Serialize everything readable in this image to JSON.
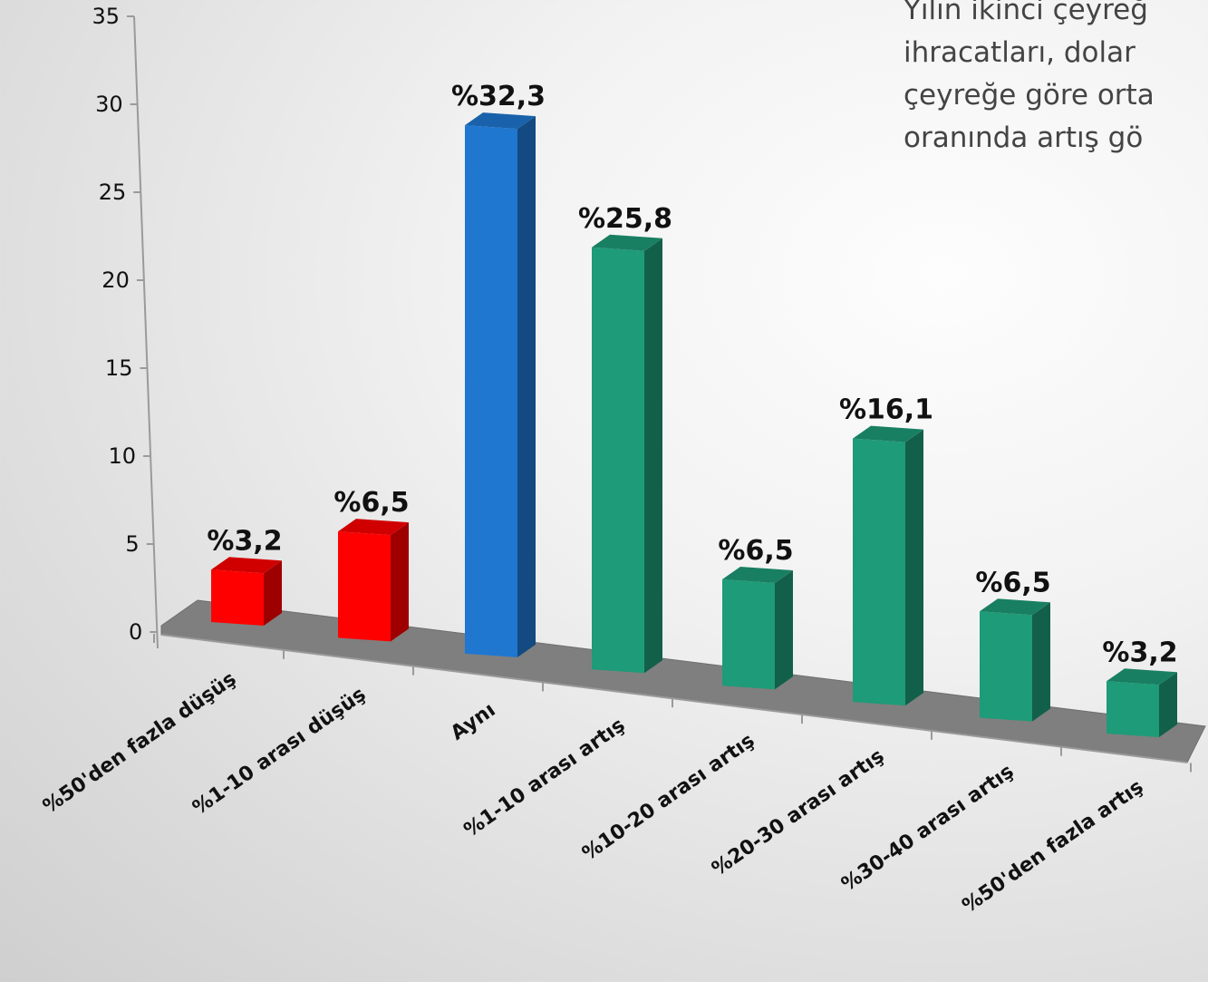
{
  "side_note": {
    "lines": [
      "Yılın ikinci çeyreğ",
      "ihracatları, dolar",
      "çeyreğe göre orta",
      "oranında artış gö"
    ]
  },
  "colors": {
    "decrease": "#ff0000",
    "same": "#1f77d0",
    "increase": "#1e9b78",
    "floor": "#7f7f7f"
  },
  "chart_data": {
    "type": "bar",
    "title": "",
    "xlabel": "",
    "ylabel": "",
    "ylim": [
      0,
      35
    ],
    "yticks": [
      "0",
      "5",
      "10",
      "15",
      "20",
      "25",
      "30",
      "35"
    ],
    "categories": [
      "%50'den fazla düşüş",
      "%1-10 arası düşüş",
      "Aynı",
      "%1-10 arası artış",
      "%10-20 arası artış",
      "%20-30 arası artış",
      "%30-40 arası artış",
      "%50'den fazla artış"
    ],
    "values": [
      3.2,
      6.5,
      32.3,
      25.8,
      6.5,
      16.1,
      6.5,
      3.2
    ],
    "data_labels": [
      "%3,2",
      "%6,5",
      "%32,3",
      "%25,8",
      "%6,5",
      "%16,1",
      "%6,5",
      "%3,2"
    ],
    "bar_colors": [
      "decrease",
      "decrease",
      "same",
      "increase",
      "increase",
      "increase",
      "increase",
      "increase"
    ],
    "grid": false,
    "legend": "none"
  }
}
